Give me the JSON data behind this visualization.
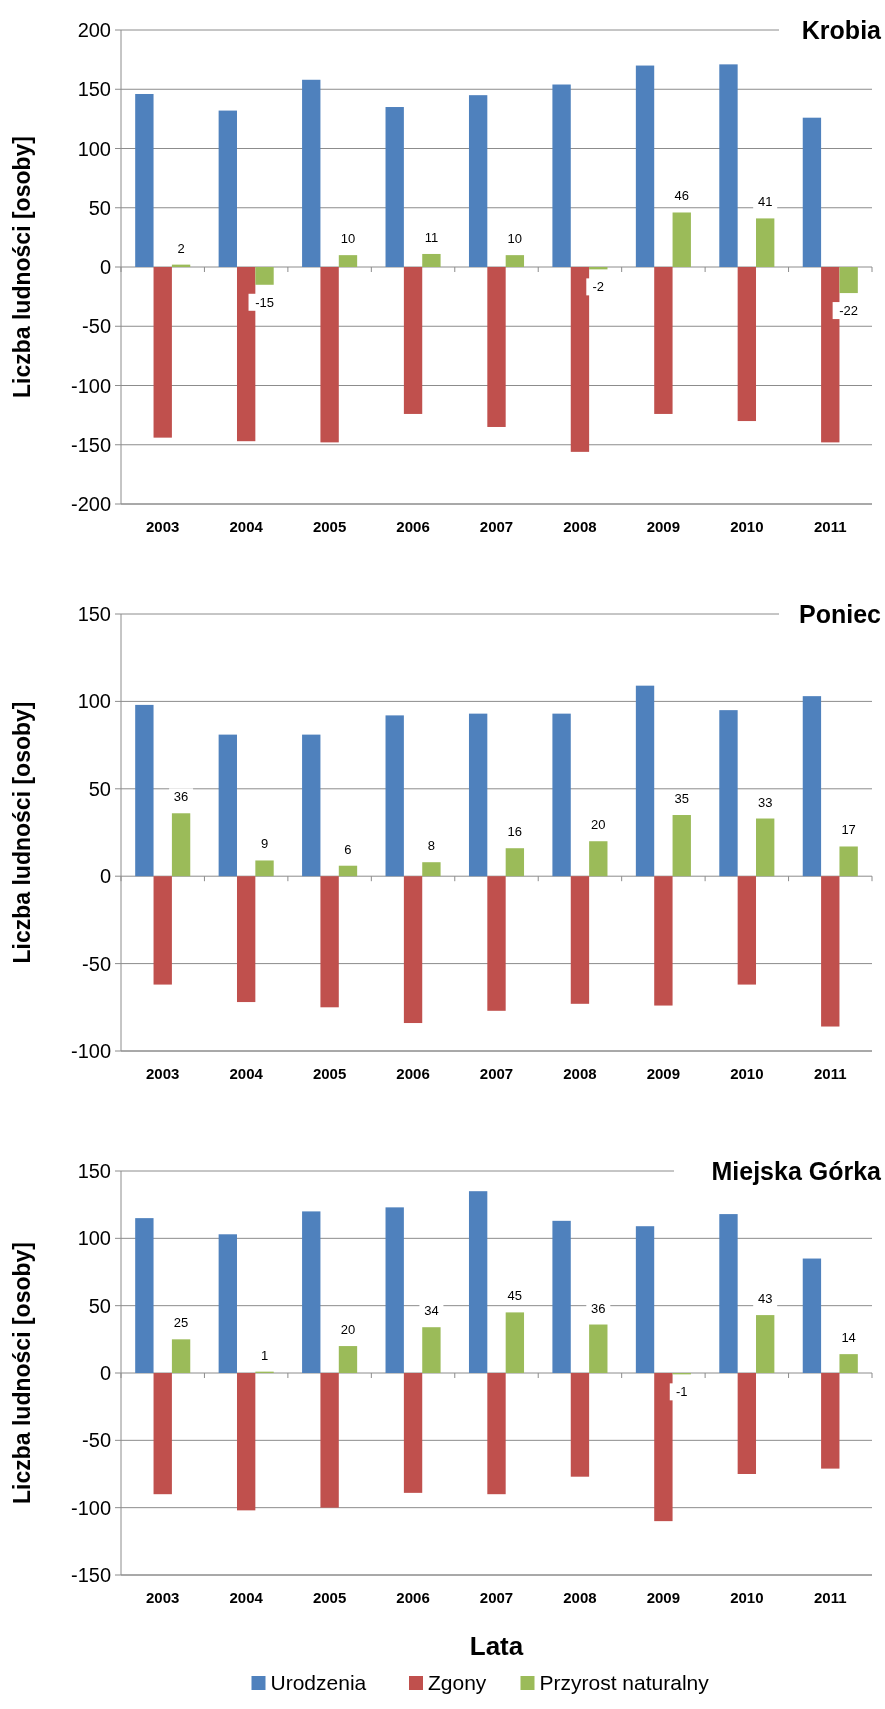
{
  "chart_data": [
    {
      "type": "bar",
      "title": "Krobia",
      "ylabel": "Liczba ludności [osoby]",
      "categories": [
        "2003",
        "2004",
        "2005",
        "2006",
        "2007",
        "2008",
        "2009",
        "2010",
        "2011"
      ],
      "ylim": [
        -200,
        200
      ],
      "yticks": [
        -200,
        -150,
        -100,
        -50,
        0,
        50,
        100,
        150,
        200
      ],
      "grid": "y",
      "legend": false,
      "series": [
        {
          "color": "#4f81bd",
          "values": [
            146,
            132,
            158,
            135,
            145,
            154,
            170,
            171,
            126
          ]
        },
        {
          "color": "#c0504d",
          "values": [
            -144,
            -147,
            -148,
            -124,
            -135,
            -156,
            -124,
            -130,
            -148
          ]
        },
        {
          "color": "#9bbb59",
          "values": [
            2,
            -15,
            10,
            11,
            10,
            -2,
            46,
            41,
            -22
          ],
          "value_labels": [
            "2",
            "-15",
            "10",
            "11",
            "10",
            "-2",
            "46",
            "41",
            "-22"
          ]
        }
      ]
    },
    {
      "type": "bar",
      "title": "Poniec",
      "ylabel": "Liczba ludności [osoby]",
      "categories": [
        "2003",
        "2004",
        "2005",
        "2006",
        "2007",
        "2008",
        "2009",
        "2010",
        "2011"
      ],
      "ylim": [
        -100,
        150
      ],
      "yticks": [
        -100,
        -50,
        0,
        50,
        100,
        150
      ],
      "grid": "y",
      "legend": false,
      "series": [
        {
          "color": "#4f81bd",
          "values": [
            98,
            81,
            81,
            92,
            93,
            93,
            109,
            95,
            103
          ]
        },
        {
          "color": "#c0504d",
          "values": [
            -62,
            -72,
            -75,
            -84,
            -77,
            -73,
            -74,
            -62,
            -86
          ]
        },
        {
          "color": "#9bbb59",
          "values": [
            36,
            9,
            6,
            8,
            16,
            20,
            35,
            33,
            17
          ],
          "value_labels": [
            "36",
            "9",
            "6",
            "8",
            "16",
            "20",
            "35",
            "33",
            "17"
          ]
        }
      ]
    },
    {
      "type": "bar",
      "title": "Miejska Górka",
      "ylabel": "Liczba ludności [osoby]",
      "xlabel": "Lata",
      "categories": [
        "2003",
        "2004",
        "2005",
        "2006",
        "2007",
        "2008",
        "2009",
        "2010",
        "2011"
      ],
      "ylim": [
        -150,
        150
      ],
      "yticks": [
        -150,
        -100,
        -50,
        0,
        50,
        100,
        150
      ],
      "grid": "y",
      "legend": "bottom",
      "series": [
        {
          "name": "Urodzenia",
          "color": "#4f81bd",
          "values": [
            115,
            103,
            120,
            123,
            135,
            113,
            109,
            118,
            85
          ]
        },
        {
          "name": "Zgony",
          "color": "#c0504d",
          "values": [
            -90,
            -102,
            -100,
            -89,
            -90,
            -77,
            -110,
            -75,
            -71
          ]
        },
        {
          "name": "Przyrost naturalny",
          "color": "#9bbb59",
          "values": [
            25,
            1,
            20,
            34,
            45,
            36,
            -1,
            43,
            14
          ],
          "value_labels": [
            "25",
            "1",
            "20",
            "34",
            "45",
            "36",
            "-1",
            "43",
            "14"
          ]
        }
      ]
    }
  ]
}
